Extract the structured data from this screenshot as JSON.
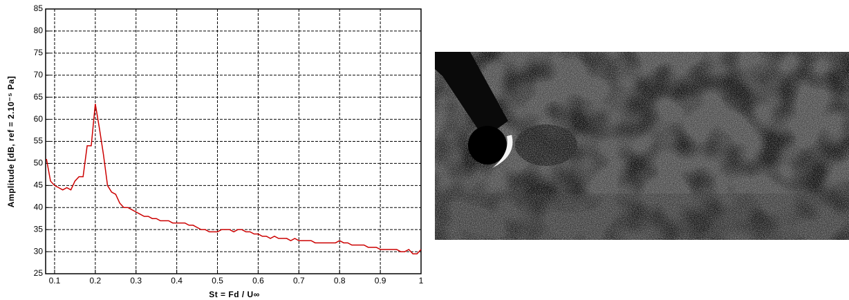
{
  "chart_data": {
    "type": "line",
    "x_label": "St = Fd / U∞",
    "y_label": "Amplitude [dB, ref = 2.10⁻⁵ Pa]",
    "x": [
      0.08,
      0.09,
      0.1,
      0.11,
      0.12,
      0.13,
      0.14,
      0.15,
      0.16,
      0.17,
      0.18,
      0.19,
      0.2,
      0.21,
      0.22,
      0.23,
      0.24,
      0.25,
      0.26,
      0.27,
      0.28,
      0.29,
      0.3,
      0.31,
      0.32,
      0.33,
      0.34,
      0.35,
      0.36,
      0.37,
      0.38,
      0.39,
      0.4,
      0.41,
      0.42,
      0.43,
      0.44,
      0.45,
      0.46,
      0.47,
      0.48,
      0.49,
      0.5,
      0.51,
      0.52,
      0.53,
      0.54,
      0.55,
      0.56,
      0.57,
      0.58,
      0.59,
      0.6,
      0.61,
      0.62,
      0.63,
      0.64,
      0.65,
      0.66,
      0.67,
      0.68,
      0.69,
      0.7,
      0.71,
      0.72,
      0.73,
      0.74,
      0.75,
      0.76,
      0.77,
      0.78,
      0.79,
      0.8,
      0.81,
      0.82,
      0.83,
      0.84,
      0.85,
      0.86,
      0.87,
      0.88,
      0.89,
      0.9,
      0.91,
      0.92,
      0.93,
      0.94,
      0.95,
      0.96,
      0.97,
      0.98,
      0.99,
      1.0
    ],
    "values": [
      51,
      46,
      45,
      44.5,
      44,
      44.5,
      44,
      46,
      47,
      47,
      54,
      54,
      63.5,
      58,
      52,
      45,
      43.5,
      43,
      41,
      40,
      40,
      39.5,
      39,
      38.5,
      38,
      38,
      37.5,
      37.5,
      37,
      37,
      37,
      36.5,
      36.5,
      36.5,
      36.5,
      36,
      36,
      35.5,
      35,
      35,
      34.5,
      34.5,
      34.5,
      35,
      35,
      35,
      34.5,
      35,
      35,
      34.5,
      34.5,
      34,
      34,
      33.5,
      33.5,
      33,
      33.5,
      33,
      33,
      33,
      32.5,
      33,
      32.5,
      32.5,
      32.5,
      32.5,
      32,
      32,
      32,
      32,
      32,
      32,
      32.5,
      32,
      32,
      31.5,
      31.5,
      31.5,
      31.5,
      31,
      31,
      31,
      30.5,
      30.5,
      30.5,
      30.5,
      30.5,
      30,
      30,
      30.5,
      29.5,
      29.5,
      30.5
    ],
    "color": "#cc0000",
    "xlim": [
      0.078,
      1.0
    ],
    "ylim": [
      25,
      85
    ],
    "xticks": [
      0.1,
      0.2,
      0.3,
      0.4,
      0.5,
      0.6,
      0.7,
      0.8,
      0.9,
      1
    ],
    "yticks": [
      25,
      30,
      35,
      40,
      45,
      50,
      55,
      60,
      65,
      70,
      75,
      80,
      85
    ],
    "grid": true
  }
}
